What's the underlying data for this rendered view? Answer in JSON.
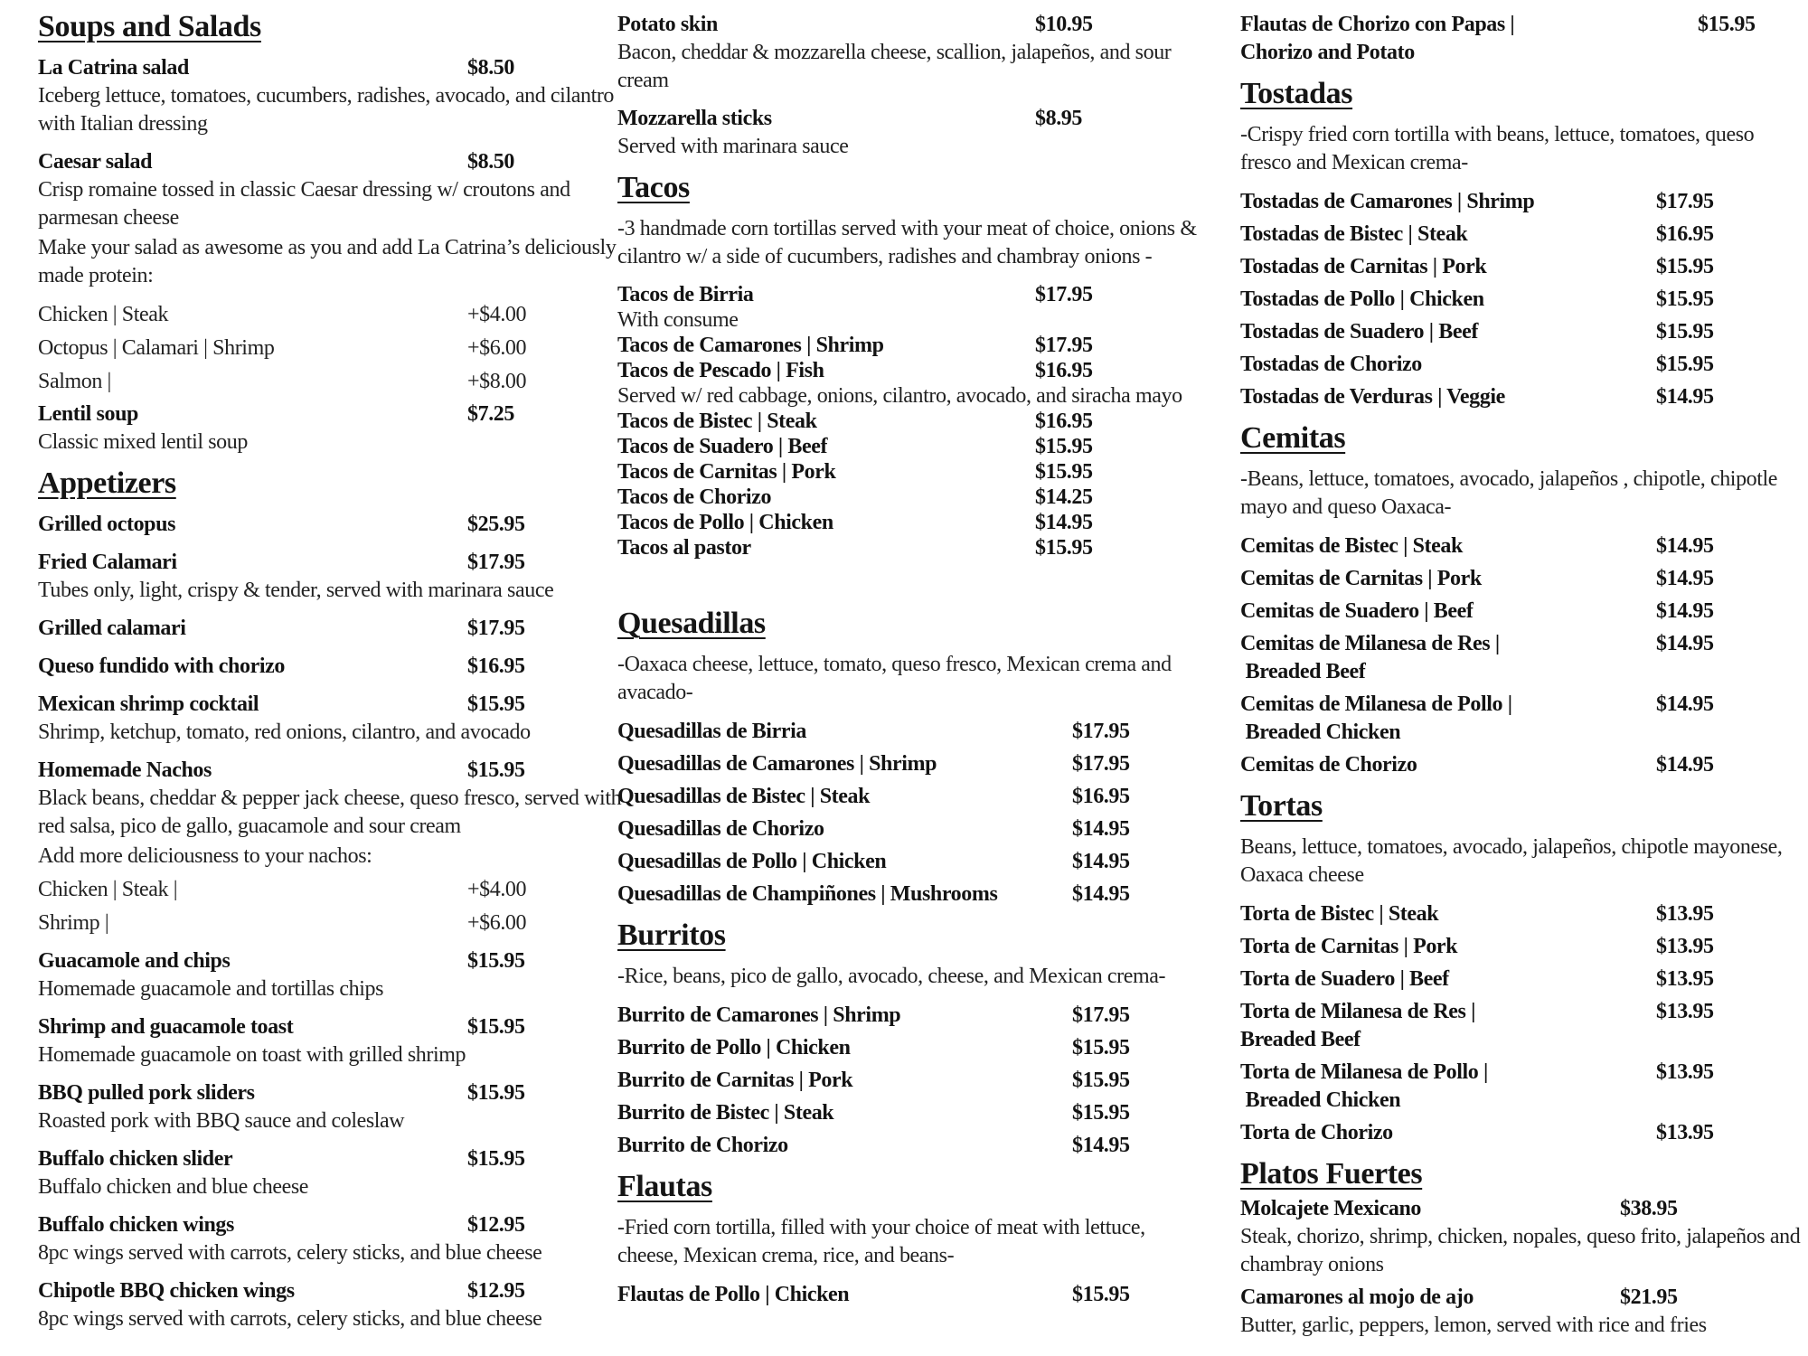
{
  "columns": [
    {
      "blocks": [
        {
          "type": "heading",
          "text": "Soups and Salads"
        },
        {
          "type": "item",
          "name": "La Catrina salad",
          "price": "$8.50",
          "desc": "Iceberg lettuce, tomatoes, cucumbers, radishes, avocado, and cilantro with Italian dressing"
        },
        {
          "type": "item",
          "name": "Caesar salad",
          "price": "$8.50",
          "desc": "Crisp romaine tossed in classic Caesar dressing w/ croutons and parmesan cheese"
        },
        {
          "type": "para",
          "text": "Make your salad as awesome as you and add La Catrina’s deliciously made protein:"
        },
        {
          "type": "addon",
          "style": "gap-sm",
          "name": "Chicken | Steak",
          "price": "+$4.00"
        },
        {
          "type": "addon",
          "name": "Octopus | Calamari | Shrimp",
          "price": "+$6.00"
        },
        {
          "type": "addon",
          "name": "Salmon |",
          "price": "+$8.00"
        },
        {
          "type": "item",
          "style": "med",
          "name": "Lentil soup",
          "price": "$7.25",
          "desc": "Classic mixed lentil soup"
        },
        {
          "type": "heading",
          "text": "Appetizers"
        },
        {
          "type": "item",
          "name": "Grilled octopus",
          "price": "$25.95"
        },
        {
          "type": "item",
          "name": "Fried Calamari",
          "price": "$17.95",
          "desc": "Tubes only, light, crispy & tender, served with marinara sauce"
        },
        {
          "type": "item",
          "name": "Grilled calamari",
          "price": "$17.95"
        },
        {
          "type": "item",
          "name": "Queso fundido with chorizo",
          "price": "$16.95"
        },
        {
          "type": "item",
          "name": "Mexican shrimp cocktail",
          "price": "$15.95",
          "desc": "Shrimp, ketchup, tomato, red onions, cilantro, and avocado"
        },
        {
          "type": "item",
          "name": "Homemade Nachos",
          "price": "$15.95",
          "desc": "Black beans, cheddar & pepper jack cheese, queso fresco, served with red salsa, pico de gallo, guacamole and sour cream"
        },
        {
          "type": "para",
          "text": "Add more deliciousness to your nachos:"
        },
        {
          "type": "addon",
          "name": "Chicken | Steak |",
          "price": "+$4.00"
        },
        {
          "type": "addon",
          "name": "Shrimp |",
          "price": "+$6.00"
        },
        {
          "type": "item",
          "name": "Guacamole and chips",
          "price": "$15.95",
          "desc": "Homemade guacamole and tortillas chips"
        },
        {
          "type": "item",
          "name": "Shrimp and guacamole toast",
          "price": "$15.95",
          "desc": "Homemade guacamole on toast with grilled shrimp"
        },
        {
          "type": "item",
          "name": "BBQ pulled pork sliders",
          "price": "$15.95",
          "desc": "Roasted pork with BBQ sauce and coleslaw"
        },
        {
          "type": "item",
          "name": "Buffalo chicken slider",
          "price": "$15.95",
          "desc": "Buffalo chicken and blue cheese"
        },
        {
          "type": "item",
          "name": "Buffalo chicken wings",
          "price": "$12.95",
          "desc": "8pc wings served with carrots, celery sticks, and blue cheese"
        },
        {
          "type": "item",
          "name": "Chipotle BBQ chicken wings",
          "price": "$12.95",
          "desc": "8pc wings served with carrots, celery sticks, and blue cheese"
        }
      ]
    },
    {
      "blocks": [
        {
          "type": "item",
          "name": "Potato skin",
          "price": "$10.95",
          "desc": "Bacon, cheddar & mozzarella cheese, scallion, jalapeños, and sour cream"
        },
        {
          "type": "item",
          "name": "Mozzarella sticks",
          "price": "$8.95",
          "desc": "Served with marinara sauce"
        },
        {
          "type": "heading",
          "text": "Tacos"
        },
        {
          "type": "intro",
          "text": "-3 handmade corn tortillas served with your meat of choice, onions & cilantro w/ a side of cucumbers, radishes and chambray onions -"
        },
        {
          "type": "item",
          "style": "tight gap-sm",
          "name": "Tacos de Birria",
          "price": "$17.95",
          "desc": "With consume"
        },
        {
          "type": "item",
          "style": "tight",
          "name": "Tacos de Camarones | Shrimp",
          "price": "$17.95"
        },
        {
          "type": "item",
          "style": "tight",
          "name": "Tacos de Pescado | Fish",
          "price": "$16.95",
          "desc": "Served w/ red cabbage, onions, cilantro, avocado, and siracha mayo"
        },
        {
          "type": "item",
          "style": "tight",
          "name": "Tacos de Bistec | Steak",
          "price": "$16.95"
        },
        {
          "type": "item",
          "style": "tight",
          "name": "Tacos de Suadero | Beef",
          "price": "$15.95"
        },
        {
          "type": "item",
          "style": "tight",
          "name": "Tacos de Carnitas | Pork",
          "price": "$15.95"
        },
        {
          "type": "item",
          "style": "tight",
          "name": "Tacos de Chorizo",
          "price": "$14.25"
        },
        {
          "type": "item",
          "style": "tight",
          "name": "Tacos de Pollo | Chicken",
          "price": "$14.95"
        },
        {
          "type": "item",
          "style": "tight",
          "name": "Tacos al pastor",
          "price": "$15.95"
        },
        {
          "type": "heading",
          "style": "gap",
          "text": "Quesadillas"
        },
        {
          "type": "intro",
          "text": "-Oaxaca cheese, lettuce, tomato, queso fresco, Mexican crema and avacado-"
        },
        {
          "type": "item",
          "style": "med gap-sm tab-lg",
          "name": "Quesadillas de Birria",
          "price": "$17.95"
        },
        {
          "type": "item",
          "style": "med tab-lg",
          "name": "Quesadillas de Camarones | Shrimp",
          "price": "$17.95"
        },
        {
          "type": "item",
          "style": "med tab-lg",
          "name": "Quesadillas de Bistec | Steak",
          "price": "$16.95"
        },
        {
          "type": "item",
          "style": "med tab-lg",
          "name": "Quesadillas de Chorizo",
          "price": "$14.95"
        },
        {
          "type": "item",
          "style": "med tab-lg",
          "name": "Quesadillas de Pollo | Chicken",
          "price": "$14.95"
        },
        {
          "type": "item",
          "style": "med tab-lg",
          "name": "Quesadillas de Champiñones | Mushrooms",
          "price": "$14.95"
        },
        {
          "type": "heading",
          "text": "Burritos"
        },
        {
          "type": "intro",
          "text": "-Rice, beans, pico de gallo, avocado, cheese, and Mexican crema-"
        },
        {
          "type": "item",
          "style": "med gap-sm tab-lg",
          "name": "Burrito de Camarones | Shrimp",
          "price": "$17.95"
        },
        {
          "type": "item",
          "style": "med tab-lg",
          "name": "Burrito de Pollo | Chicken",
          "price": "$15.95"
        },
        {
          "type": "item",
          "style": "med tab-lg",
          "name": "Burrito de Carnitas | Pork",
          "price": "$15.95"
        },
        {
          "type": "item",
          "style": "med tab-lg",
          "name": "Burrito de Bistec | Steak",
          "price": "$15.95"
        },
        {
          "type": "item",
          "style": "med tab-lg",
          "name": "Burrito de Chorizo",
          "price": "$14.95"
        },
        {
          "type": "heading",
          "text": "Flautas"
        },
        {
          "type": "intro",
          "text": "-Fried corn tortilla, filled with your choice of meat with lettuce, cheese, Mexican crema, rice, and beans-"
        },
        {
          "type": "item",
          "style": "med gap-sm tab-lg",
          "name": "Flautas de Pollo | Chicken",
          "price": "$15.95"
        }
      ]
    },
    {
      "blocks": [
        {
          "type": "item",
          "style": "tab-lg",
          "name": "Flautas de Chorizo con Papas |",
          "name2": "Chorizo and Potato",
          "price": "$15.95"
        },
        {
          "type": "heading",
          "text": "Tostadas"
        },
        {
          "type": "intro",
          "text": "-Crispy fried corn tortilla with beans, lettuce, tomatoes, queso fresco and Mexican crema-"
        },
        {
          "type": "item",
          "style": "med gap-sm",
          "name": "Tostadas de Camarones | Shrimp",
          "price": "$17.95"
        },
        {
          "type": "item",
          "style": "med",
          "name": "Tostadas de Bistec | Steak",
          "price": "$16.95"
        },
        {
          "type": "item",
          "style": "med",
          "name": "Tostadas de Carnitas | Pork",
          "price": "$15.95"
        },
        {
          "type": "item",
          "style": "med",
          "name": "Tostadas de Pollo | Chicken",
          "price": "$15.95"
        },
        {
          "type": "item",
          "style": "med",
          "name": "Tostadas de Suadero | Beef",
          "price": "$15.95"
        },
        {
          "type": "item",
          "style": "med",
          "name": "Tostadas de Chorizo",
          "price": "$15.95"
        },
        {
          "type": "item",
          "style": "med",
          "name": "Tostadas de Verduras | Veggie",
          "price": "$14.95"
        },
        {
          "type": "heading",
          "text": "Cemitas"
        },
        {
          "type": "intro",
          "text": "-Beans, lettuce, tomatoes, avocado, jalapeños , chipotle, chipotle mayo and queso Oaxaca-"
        },
        {
          "type": "item",
          "style": "med gap-sm",
          "name": "Cemitas de Bistec | Steak",
          "price": "$14.95"
        },
        {
          "type": "item",
          "style": "med",
          "name": "Cemitas de Carnitas | Pork",
          "price": "$14.95"
        },
        {
          "type": "item",
          "style": "med",
          "name": "Cemitas de Suadero | Beef",
          "price": "$14.95"
        },
        {
          "type": "item",
          "style": "med",
          "name": "Cemitas de Milanesa de Res |",
          "name2": " Breaded Beef",
          "price": "$14.95"
        },
        {
          "type": "item",
          "style": "med",
          "name": "Cemitas de Milanesa de Pollo |",
          "name2": " Breaded Chicken",
          "price": "$14.95"
        },
        {
          "type": "item",
          "style": "med",
          "name": "Cemitas de Chorizo",
          "price": "$14.95"
        },
        {
          "type": "heading",
          "text": "Tortas"
        },
        {
          "type": "intro",
          "text": "Beans, lettuce, tomatoes, avocado, jalapeños, chipotle mayonese, Oaxaca cheese"
        },
        {
          "type": "item",
          "style": "med gap-sm",
          "name": "Torta de Bistec | Steak",
          "price": "$13.95"
        },
        {
          "type": "item",
          "style": "med",
          "name": "Torta de Carnitas | Pork",
          "price": "$13.95"
        },
        {
          "type": "item",
          "style": "med",
          "name": "Torta de Suadero | Beef",
          "price": "$13.95"
        },
        {
          "type": "item",
          "style": "med",
          "name": "Torta de Milanesa de Res |",
          "name2": "Breaded Beef",
          "price": "$13.95"
        },
        {
          "type": "item",
          "style": "med",
          "name": "Torta de Milanesa de Pollo |",
          "name2": " Breaded Chicken",
          "price": "$13.95"
        },
        {
          "type": "item",
          "style": "med",
          "name": "Torta de Chorizo",
          "price": "$13.95"
        },
        {
          "type": "heading",
          "style": "snug",
          "text": "Platos Fuertes"
        },
        {
          "type": "item",
          "style": "med tab-sm",
          "name": "Molcajete Mexicano",
          "price": "$38.95",
          "desc": "Steak, chorizo, shrimp, chicken, nopales, queso frito, jalapeños and chambray onions"
        },
        {
          "type": "item",
          "style": "med tab-sm",
          "name": "Camarones al mojo de ajo",
          "price": "$21.95",
          "desc": "Butter, garlic, peppers, lemon, served with rice and fries"
        }
      ]
    }
  ]
}
